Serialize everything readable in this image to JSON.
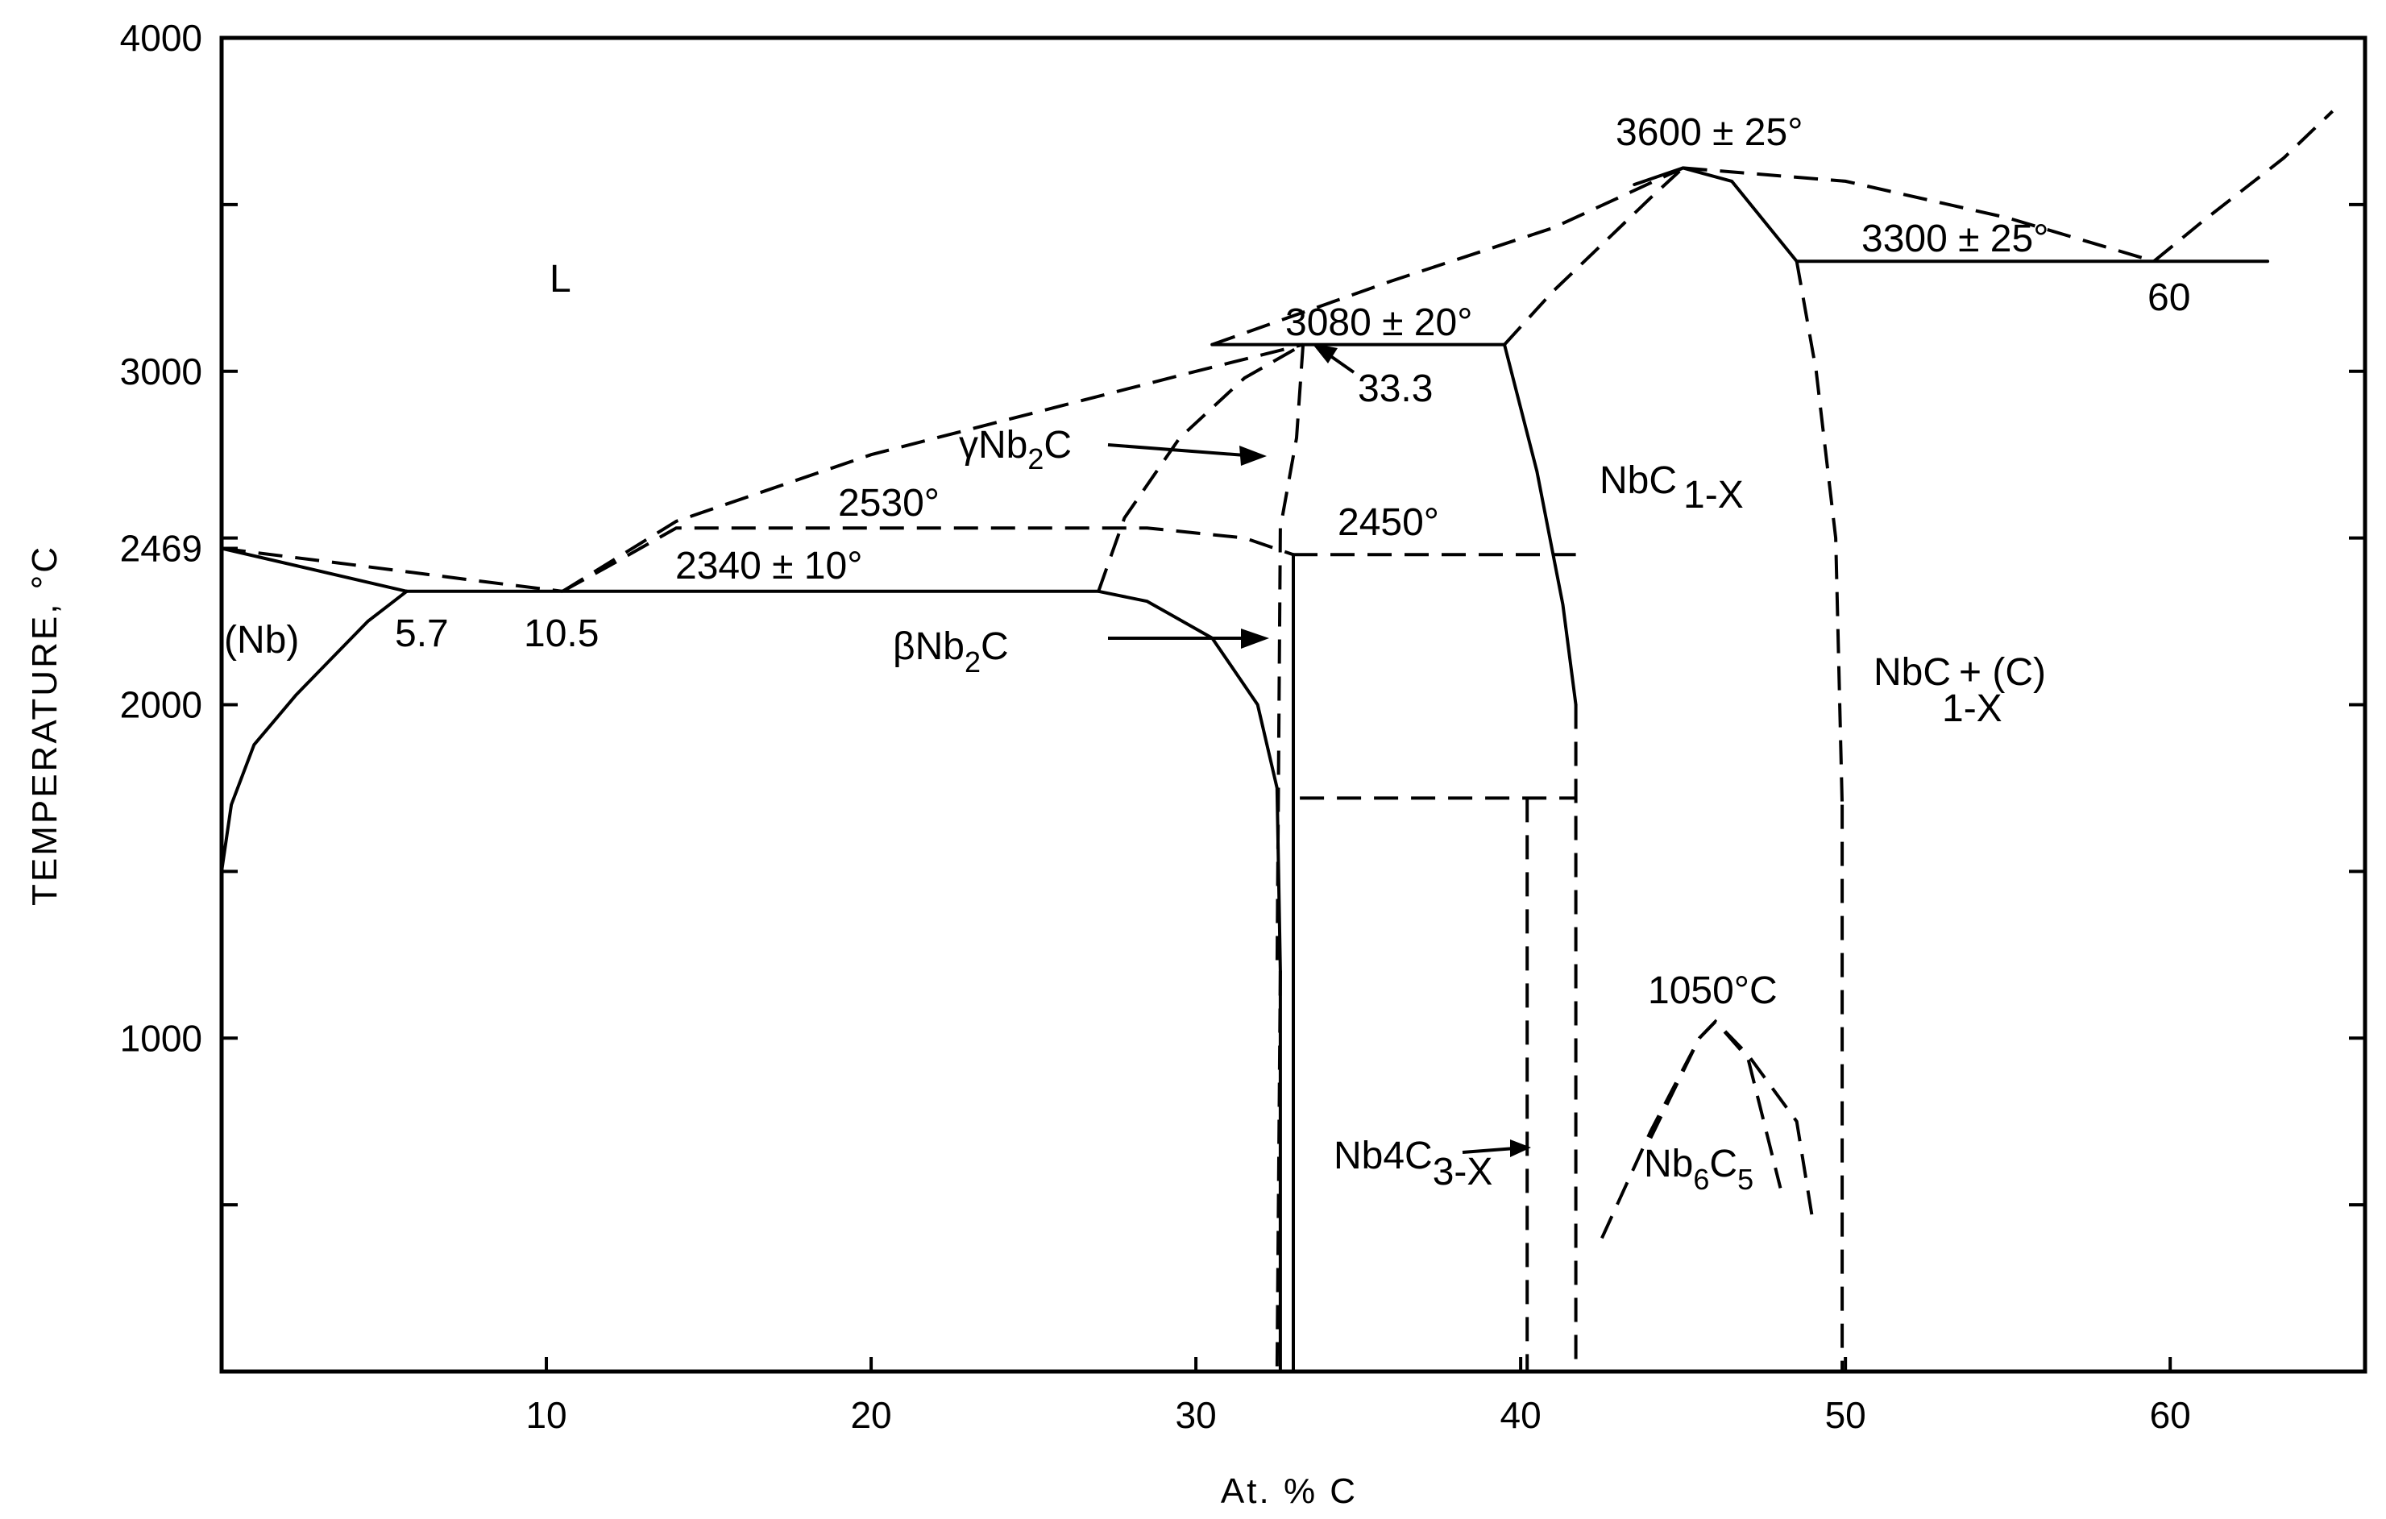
{
  "chart_data": {
    "type": "line",
    "title": "",
    "xlabel": "At. % C",
    "ylabel": "TEMPERATURE, °C",
    "xlim": [
      0,
      66
    ],
    "ylim": [
      0,
      4000
    ],
    "x_ticks": [
      10,
      20,
      30,
      40,
      50,
      60
    ],
    "x_tick_labels": [
      "10",
      "20",
      "30",
      "40",
      "50",
      "60"
    ],
    "y_ticks": [
      500,
      1000,
      1500,
      2000,
      2500,
      3000,
      3500,
      4000
    ],
    "y_tick_labels": [
      "1000",
      "2000",
      "2469",
      "3000",
      "4000"
    ],
    "y_labeled_values": [
      1000,
      2000,
      2469,
      3000,
      4000
    ],
    "grid": false,
    "series": [
      {
        "style": "dashed",
        "x": [
          0,
          4,
          8,
          10.5
        ],
        "y": [
          2469,
          2420,
          2370,
          2340
        ]
      },
      {
        "style": "solid",
        "x": [
          0,
          5.7
        ],
        "y": [
          2469,
          2340
        ]
      },
      {
        "style": "solid",
        "x": [
          0,
          0.3,
          1,
          2.3,
          3.5,
          4.5,
          5.7
        ],
        "y": [
          1500,
          1700,
          1880,
          2030,
          2150,
          2250,
          2340
        ]
      },
      {
        "style": "solid",
        "x": [
          5.7,
          27
        ],
        "y": [
          2340,
          2340
        ]
      },
      {
        "style": "dashed",
        "x": [
          10.5,
          14,
          20,
          26,
          30,
          33.3
        ],
        "y": [
          2340,
          2550,
          2750,
          2900,
          3000,
          3080
        ]
      },
      {
        "style": "solid",
        "x": [
          30.5,
          39.5
        ],
        "y": [
          3080,
          3080
        ]
      },
      {
        "style": "dashed",
        "x": [
          30.5,
          36,
          41,
          45
        ],
        "y": [
          3080,
          3270,
          3430,
          3610
        ]
      },
      {
        "style": "dashed",
        "x": [
          27,
          27.8,
          29.5,
          31.5,
          33.3
        ],
        "y": [
          2340,
          2560,
          2800,
          2980,
          3080
        ]
      },
      {
        "style": "dashed",
        "x": [
          33.3,
          33.1,
          32.6,
          32.5
        ],
        "y": [
          3080,
          2800,
          2530,
          1200
        ]
      },
      {
        "style": "dashed",
        "x": [
          32.6,
          32.5
        ],
        "y": [
          1200,
          0
        ]
      },
      {
        "style": "solid",
        "x": [
          27,
          28.5,
          30.5,
          31.9,
          32.5,
          32.6
        ],
        "y": [
          2340,
          2310,
          2200,
          2000,
          1750,
          1200
        ]
      },
      {
        "style": "solid",
        "x": [
          32.6,
          32.6
        ],
        "y": [
          1200,
          0
        ]
      },
      {
        "style": "dashed",
        "x": [
          10.5,
          12,
          14,
          28.5,
          31.5,
          33
        ],
        "y": [
          2340,
          2420,
          2530,
          2530,
          2500,
          2450
        ]
      },
      {
        "style": "solid",
        "x": [
          33,
          33
        ],
        "y": [
          2450,
          0
        ]
      },
      {
        "style": "dashed",
        "x": [
          33,
          41.7
        ],
        "y": [
          2450,
          2450
        ]
      },
      {
        "style": "solid",
        "x": [
          39.5,
          40.5,
          41.3,
          41.7
        ],
        "y": [
          3080,
          2700,
          2300,
          2000
        ]
      },
      {
        "style": "dashed",
        "x": [
          41.7,
          41.7
        ],
        "y": [
          2000,
          0
        ]
      },
      {
        "style": "dashed",
        "x": [
          33.2,
          41.7
        ],
        "y": [
          1720,
          1720
        ]
      },
      {
        "style": "dashed",
        "x": [
          40.2,
          40.2
        ],
        "y": [
          1720,
          0
        ]
      },
      {
        "style": "dashed",
        "x": [
          39.5,
          41,
          42.5,
          44,
          45
        ],
        "y": [
          3080,
          3240,
          3380,
          3520,
          3610
        ]
      },
      {
        "style": "solid",
        "x": [
          43.5,
          45,
          46.5,
          48.5
        ],
        "y": [
          3560,
          3610,
          3570,
          3330
        ]
      },
      {
        "style": "dashed",
        "x": [
          45,
          50,
          55,
          59.5
        ],
        "y": [
          3610,
          3570,
          3460,
          3330
        ]
      },
      {
        "style": "solid",
        "x": [
          48.5,
          63
        ],
        "y": [
          3330,
          3330
        ]
      },
      {
        "style": "dashed",
        "x": [
          59.5,
          61,
          63.5,
          65
        ],
        "y": [
          3330,
          3450,
          3640,
          3780
        ]
      },
      {
        "style": "dashed",
        "x": [
          48.5,
          49.1,
          49.7,
          49.9
        ],
        "y": [
          3330,
          3000,
          2500,
          1700
        ]
      },
      {
        "style": "dashed",
        "x": [
          49.9,
          49.9
        ],
        "y": [
          1700,
          0
        ]
      },
      {
        "style": "dashed",
        "x": [
          42.5,
          44,
          45.5,
          46,
          47,
          48
        ],
        "y": [
          400,
          720,
          1000,
          1050,
          940,
          550
        ]
      },
      {
        "style": "dashed",
        "x": [
          44,
          45.5,
          46,
          47,
          48.5,
          49
        ],
        "y": [
          700,
          1000,
          1050,
          950,
          750,
          450
        ]
      }
    ],
    "annotations": [
      {
        "text": "L",
        "x": 10,
        "y": 3220
      },
      {
        "text": "(Nb)",
        "x": 1.3,
        "y": 2230
      },
      {
        "text": "5.7",
        "x": 6.4,
        "y": 2230
      },
      {
        "text": "10.5",
        "x": 10.5,
        "y": 2230
      },
      {
        "text": "2340 ± 10°",
        "x": 16,
        "y": 2420
      },
      {
        "text": "2530°",
        "x": 21,
        "y": 2600
      },
      {
        "text": "2450°",
        "x": 36.5,
        "y": 2510
      },
      {
        "text": "3080 ± 20°",
        "x": 35.5,
        "y": 3110
      },
      {
        "text": "33.3",
        "x": 35,
        "y": 2950
      },
      {
        "text": "3600 ± 25°",
        "x": 45,
        "y": 3700
      },
      {
        "text": "3300 ± 25°",
        "x": 55,
        "y": 3370
      },
      {
        "text": "60",
        "x": 59.8,
        "y": 3200
      },
      {
        "text": "γNb2C",
        "x": 24.5,
        "y": 2760
      },
      {
        "text": "βNb2C",
        "x": 23,
        "y": 2200
      },
      {
        "text": "NbC1-X",
        "x": 45.5,
        "y": 2600
      },
      {
        "text": "NbC1-X + (C)",
        "x": 53.5,
        "y": 2050
      },
      {
        "text": "Nb4C3-X",
        "x": 37.3,
        "y": 620
      },
      {
        "text": "Nb6C5",
        "x": 45.5,
        "y": 590
      },
      {
        "text": "1050°C",
        "x": 46,
        "y": 1100
      }
    ],
    "labels": {
      "L": "L",
      "Nb": "(Nb)",
      "x57": "5.7",
      "x105": "10.5",
      "t2340": "2340 ± 10°",
      "t2530": "2530°",
      "t2450": "2450°",
      "t3080": "3080 ± 20°",
      "x333": "33.3",
      "t3600": "3600 ± 25°",
      "t3300": "3300 ± 25°",
      "x60": "60",
      "gamma_main": "γNb",
      "gamma_sub": "2",
      "gamma_end": "C",
      "beta_main": "βNb",
      "beta_sub": "2",
      "beta_end": "C",
      "nbc_main": "NbC",
      "nbc_sub": "1-X",
      "nbcc_main": "NbC",
      "nbcc_sub": "1-X",
      "nbcc_end": "+ (C)",
      "nb4c3_main": "Nb4C",
      "nb4c3_sub": "3-X",
      "nb6c5_a": "Nb",
      "nb6c5_b": "6",
      "nb6c5_c": "C",
      "nb6c5_d": "5",
      "t1050": "1050°C"
    },
    "legend": "none"
  }
}
